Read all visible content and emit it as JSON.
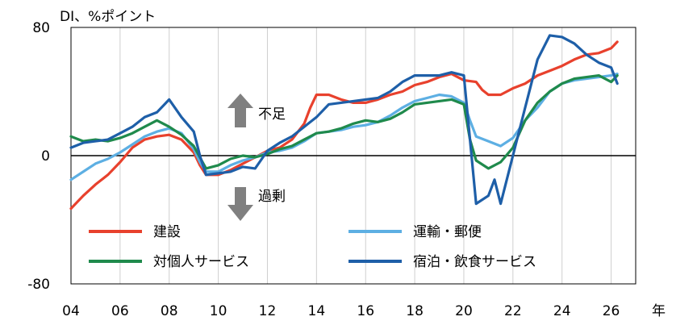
{
  "chart_data": {
    "type": "line",
    "ylabel": "DI、%ポイント",
    "xlabel": "年",
    "ylim": [
      -80,
      80
    ],
    "xlim": [
      2004,
      2027
    ],
    "y_ticks": [
      80,
      0,
      -80
    ],
    "y_tick_labels": [
      "80",
      "0",
      "-80"
    ],
    "x_ticks": [
      2004,
      2006,
      2008,
      2010,
      2012,
      2014,
      2016,
      2018,
      2020,
      2022,
      2024,
      2026
    ],
    "x_tick_labels": [
      "04",
      "06",
      "08",
      "10",
      "12",
      "14",
      "16",
      "18",
      "20",
      "22",
      "24",
      "26"
    ],
    "vertical_gridlines": true,
    "annotations": {
      "up": "不足",
      "down": "過剰"
    },
    "series": [
      {
        "name": "建設",
        "color": "#e8412d",
        "points": [
          [
            2004.0,
            -33
          ],
          [
            2004.5,
            -25
          ],
          [
            2005.0,
            -18
          ],
          [
            2005.5,
            -12
          ],
          [
            2006.0,
            -4
          ],
          [
            2006.5,
            5
          ],
          [
            2007.0,
            10
          ],
          [
            2007.5,
            12
          ],
          [
            2008.0,
            13
          ],
          [
            2008.5,
            10
          ],
          [
            2009.0,
            2
          ],
          [
            2009.25,
            -6
          ],
          [
            2009.5,
            -12
          ],
          [
            2010.0,
            -12
          ],
          [
            2010.5,
            -9
          ],
          [
            2011.0,
            -5
          ],
          [
            2011.5,
            -1
          ],
          [
            2012.0,
            3
          ],
          [
            2012.5,
            5
          ],
          [
            2013.0,
            10
          ],
          [
            2013.5,
            20
          ],
          [
            2013.75,
            30
          ],
          [
            2014.0,
            38
          ],
          [
            2014.5,
            38
          ],
          [
            2015.0,
            35
          ],
          [
            2015.5,
            33
          ],
          [
            2016.0,
            33
          ],
          [
            2016.5,
            35
          ],
          [
            2017.0,
            38
          ],
          [
            2017.5,
            40
          ],
          [
            2018.0,
            44
          ],
          [
            2018.5,
            46
          ],
          [
            2019.0,
            49
          ],
          [
            2019.5,
            51
          ],
          [
            2020.0,
            47
          ],
          [
            2020.5,
            46
          ],
          [
            2020.75,
            41
          ],
          [
            2021.0,
            38
          ],
          [
            2021.5,
            38
          ],
          [
            2022.0,
            42
          ],
          [
            2022.5,
            45
          ],
          [
            2023.0,
            50
          ],
          [
            2023.5,
            53
          ],
          [
            2024.0,
            56
          ],
          [
            2024.5,
            60
          ],
          [
            2025.0,
            63
          ],
          [
            2025.5,
            64
          ],
          [
            2026.0,
            67
          ],
          [
            2026.25,
            71
          ]
        ]
      },
      {
        "name": "運輸・郵便",
        "color": "#5dafe3",
        "points": [
          [
            2004.0,
            -15
          ],
          [
            2004.5,
            -10
          ],
          [
            2005.0,
            -5
          ],
          [
            2005.5,
            -2
          ],
          [
            2006.0,
            2
          ],
          [
            2006.5,
            7
          ],
          [
            2007.0,
            12
          ],
          [
            2007.5,
            15
          ],
          [
            2008.0,
            17
          ],
          [
            2008.5,
            14
          ],
          [
            2009.0,
            4
          ],
          [
            2009.25,
            -4
          ],
          [
            2009.5,
            -10
          ],
          [
            2010.0,
            -10
          ],
          [
            2010.5,
            -6
          ],
          [
            2011.0,
            -3
          ],
          [
            2011.5,
            -1
          ],
          [
            2012.0,
            2
          ],
          [
            2012.5,
            3
          ],
          [
            2013.0,
            5
          ],
          [
            2013.5,
            9
          ],
          [
            2014.0,
            14
          ],
          [
            2014.5,
            15
          ],
          [
            2015.0,
            16
          ],
          [
            2015.5,
            18
          ],
          [
            2016.0,
            19
          ],
          [
            2016.5,
            21
          ],
          [
            2017.0,
            25
          ],
          [
            2017.5,
            30
          ],
          [
            2018.0,
            34
          ],
          [
            2018.5,
            36
          ],
          [
            2019.0,
            38
          ],
          [
            2019.5,
            37
          ],
          [
            2020.0,
            33
          ],
          [
            2020.25,
            22
          ],
          [
            2020.5,
            12
          ],
          [
            2021.0,
            9
          ],
          [
            2021.5,
            6
          ],
          [
            2022.0,
            11
          ],
          [
            2022.5,
            22
          ],
          [
            2023.0,
            30
          ],
          [
            2023.5,
            40
          ],
          [
            2024.0,
            45
          ],
          [
            2024.5,
            47
          ],
          [
            2025.0,
            48
          ],
          [
            2025.5,
            49
          ],
          [
            2026.0,
            50
          ],
          [
            2026.25,
            51
          ]
        ]
      },
      {
        "name": "対個人サービス",
        "color": "#1f8a4c",
        "points": [
          [
            2004.0,
            12
          ],
          [
            2004.5,
            9
          ],
          [
            2005.0,
            10
          ],
          [
            2005.5,
            9
          ],
          [
            2006.0,
            11
          ],
          [
            2006.5,
            14
          ],
          [
            2007.0,
            18
          ],
          [
            2007.5,
            22
          ],
          [
            2008.0,
            18
          ],
          [
            2008.5,
            13
          ],
          [
            2009.0,
            6
          ],
          [
            2009.25,
            -1
          ],
          [
            2009.5,
            -8
          ],
          [
            2010.0,
            -6
          ],
          [
            2010.5,
            -2
          ],
          [
            2011.0,
            0
          ],
          [
            2011.5,
            -1
          ],
          [
            2012.0,
            1
          ],
          [
            2012.5,
            4
          ],
          [
            2013.0,
            6
          ],
          [
            2013.5,
            10
          ],
          [
            2014.0,
            14
          ],
          [
            2014.5,
            15
          ],
          [
            2015.0,
            17
          ],
          [
            2015.5,
            20
          ],
          [
            2016.0,
            22
          ],
          [
            2016.5,
            21
          ],
          [
            2017.0,
            23
          ],
          [
            2017.5,
            27
          ],
          [
            2018.0,
            32
          ],
          [
            2018.5,
            33
          ],
          [
            2019.0,
            34
          ],
          [
            2019.5,
            35
          ],
          [
            2020.0,
            32
          ],
          [
            2020.25,
            10
          ],
          [
            2020.5,
            -3
          ],
          [
            2021.0,
            -8
          ],
          [
            2021.5,
            -4
          ],
          [
            2022.0,
            5
          ],
          [
            2022.5,
            22
          ],
          [
            2023.0,
            33
          ],
          [
            2023.5,
            40
          ],
          [
            2024.0,
            45
          ],
          [
            2024.5,
            48
          ],
          [
            2025.0,
            49
          ],
          [
            2025.5,
            50
          ],
          [
            2026.0,
            46
          ],
          [
            2026.25,
            50
          ]
        ]
      },
      {
        "name": "宿泊・飲食サービス",
        "color": "#1e5fa8",
        "points": [
          [
            2004.0,
            5
          ],
          [
            2004.5,
            8
          ],
          [
            2005.0,
            9
          ],
          [
            2005.5,
            10
          ],
          [
            2006.0,
            14
          ],
          [
            2006.5,
            18
          ],
          [
            2007.0,
            24
          ],
          [
            2007.5,
            27
          ],
          [
            2008.0,
            35
          ],
          [
            2008.5,
            24
          ],
          [
            2009.0,
            15
          ],
          [
            2009.25,
            0
          ],
          [
            2009.5,
            -12
          ],
          [
            2010.0,
            -11
          ],
          [
            2010.5,
            -10
          ],
          [
            2011.0,
            -7
          ],
          [
            2011.5,
            -8
          ],
          [
            2012.0,
            3
          ],
          [
            2012.5,
            8
          ],
          [
            2013.0,
            12
          ],
          [
            2013.5,
            18
          ],
          [
            2014.0,
            24
          ],
          [
            2014.5,
            32
          ],
          [
            2015.0,
            33
          ],
          [
            2015.5,
            34
          ],
          [
            2016.0,
            35
          ],
          [
            2016.5,
            36
          ],
          [
            2017.0,
            40
          ],
          [
            2017.5,
            46
          ],
          [
            2018.0,
            50
          ],
          [
            2018.5,
            50
          ],
          [
            2019.0,
            50
          ],
          [
            2019.5,
            52
          ],
          [
            2020.0,
            50
          ],
          [
            2020.25,
            10
          ],
          [
            2020.5,
            -30
          ],
          [
            2021.0,
            -25
          ],
          [
            2021.25,
            -15
          ],
          [
            2021.5,
            -30
          ],
          [
            2022.0,
            0
          ],
          [
            2022.5,
            30
          ],
          [
            2023.0,
            60
          ],
          [
            2023.5,
            75
          ],
          [
            2024.0,
            74
          ],
          [
            2024.5,
            70
          ],
          [
            2025.0,
            63
          ],
          [
            2025.5,
            58
          ],
          [
            2026.0,
            55
          ],
          [
            2026.25,
            45
          ]
        ]
      }
    ],
    "legend": [
      {
        "series": 0,
        "position": "row1-left"
      },
      {
        "series": 1,
        "position": "row1-right"
      },
      {
        "series": 2,
        "position": "row2-left"
      },
      {
        "series": 3,
        "position": "row2-right"
      }
    ]
  }
}
